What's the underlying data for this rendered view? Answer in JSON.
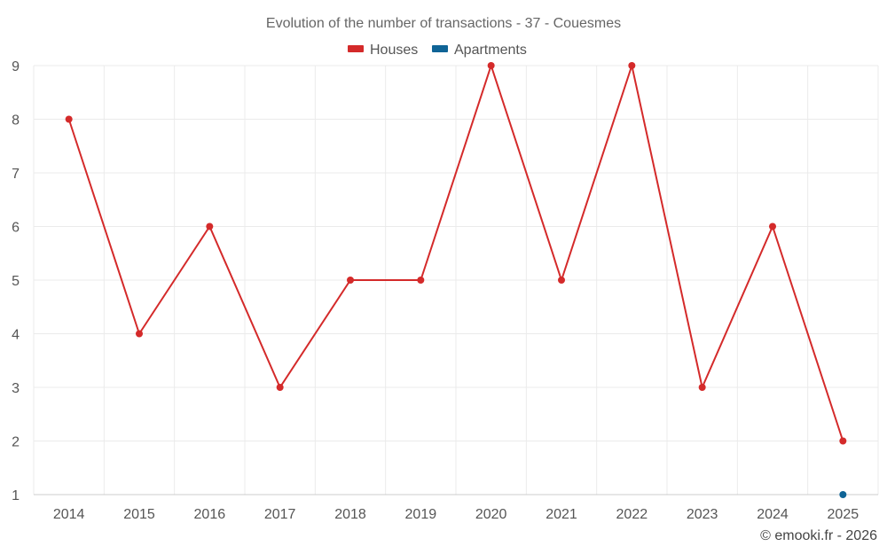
{
  "chart_data": {
    "type": "line",
    "title": "Evolution of the number of transactions - 37 - Couesmes",
    "categories": [
      "2014",
      "2015",
      "2016",
      "2017",
      "2018",
      "2019",
      "2020",
      "2021",
      "2022",
      "2023",
      "2024",
      "2025"
    ],
    "ylim": [
      1,
      9
    ],
    "y_ticks": [
      1,
      2,
      3,
      4,
      5,
      6,
      7,
      8,
      9
    ],
    "grid": true,
    "legend_position": "top-center",
    "series": [
      {
        "name": "Houses",
        "color": "#d42a2a",
        "values": [
          8,
          4,
          6,
          3,
          5,
          5,
          9,
          5,
          9,
          3,
          6,
          2
        ]
      },
      {
        "name": "Apartments",
        "color": "#0f6496",
        "values": [
          null,
          null,
          null,
          null,
          null,
          null,
          null,
          null,
          null,
          null,
          null,
          1
        ]
      }
    ]
  },
  "credit": "© emooki.fr - 2026"
}
